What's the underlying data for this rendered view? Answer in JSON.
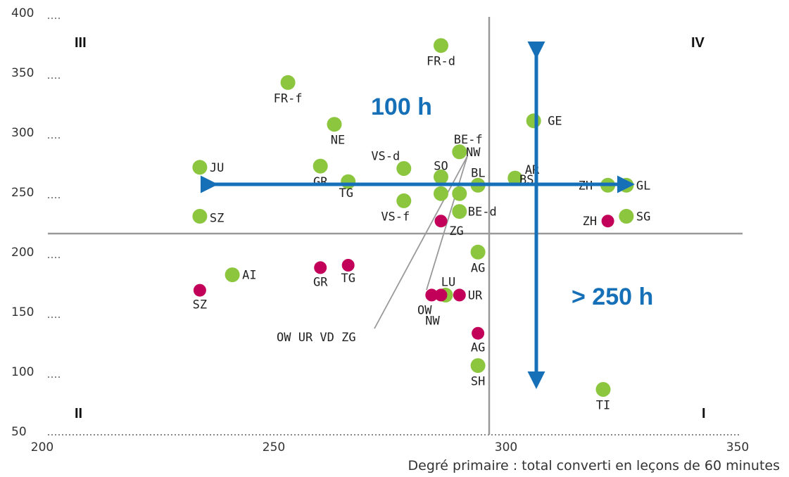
{
  "chart_data": {
    "type": "scatter",
    "xlabel": "Degré primaire : total converti en leçons de 60 minutes",
    "ylabel": "",
    "xlim": [
      200,
      350
    ],
    "ylim": [
      50,
      400
    ],
    "x_ticks": [
      "200",
      "250",
      "300",
      "350"
    ],
    "y_ticks": [
      "400",
      "350",
      "300",
      "250",
      "200",
      "150",
      "100",
      "50"
    ],
    "reference_x": 297,
    "reference_y": 214,
    "quadrant_labels": [
      "I",
      "II",
      "III",
      "IV"
    ],
    "callouts": [
      "100 h",
      "> 250 h"
    ],
    "colors": {
      "green": "#8cc63f",
      "magenta": "#c2005a",
      "arrow": "#1670b8",
      "axis": "#999999"
    },
    "series": [
      {
        "color": "green",
        "points": [
          {
            "label": "FR-d",
            "x": 286,
            "y": 376
          },
          {
            "label": "FR-f",
            "x": 253,
            "y": 345
          },
          {
            "label": "NE",
            "x": 263,
            "y": 310
          },
          {
            "label": "GE",
            "x": 306,
            "y": 313
          },
          {
            "label": "BE-f",
            "x": 290,
            "y": 287
          },
          {
            "label": "JU",
            "x": 234,
            "y": 274
          },
          {
            "label": "GR",
            "x": 260,
            "y": 275
          },
          {
            "label": "VS-d",
            "x": 278,
            "y": 273
          },
          {
            "label": "SO",
            "x": 286,
            "y": 266
          },
          {
            "label": "TG",
            "x": 266,
            "y": 262
          },
          {
            "label": "BL",
            "x": 294,
            "y": 259
          },
          {
            "label": "AR",
            "x": 302,
            "y": 265
          },
          {
            "label": "ZH",
            "x": 322,
            "y": 259
          },
          {
            "label": "GL",
            "x": 326,
            "y": 259
          },
          {
            "label": "",
            "x": 286,
            "y": 252
          },
          {
            "label": "",
            "x": 290,
            "y": 252
          },
          {
            "label": "VS-f",
            "x": 278,
            "y": 246
          },
          {
            "label": "BE-d",
            "x": 290,
            "y": 237
          },
          {
            "label": "SZ",
            "x": 234,
            "y": 233
          },
          {
            "label": "SG",
            "x": 326,
            "y": 233
          },
          {
            "label": "AG",
            "x": 294,
            "y": 203
          },
          {
            "label": "AI",
            "x": 241,
            "y": 184
          },
          {
            "label": "LU",
            "x": 287,
            "y": 167
          },
          {
            "label": "SH",
            "x": 294,
            "y": 108
          },
          {
            "label": "TI",
            "x": 321,
            "y": 88
          }
        ]
      },
      {
        "color": "magenta",
        "points": [
          {
            "label": "ZG",
            "x": 286,
            "y": 229
          },
          {
            "label": "ZH",
            "x": 322,
            "y": 229
          },
          {
            "label": "GR",
            "x": 260,
            "y": 190
          },
          {
            "label": "TG",
            "x": 266,
            "y": 192
          },
          {
            "label": "SZ",
            "x": 234,
            "y": 171
          },
          {
            "label": "OW",
            "x": 284,
            "y": 167
          },
          {
            "label": "NW",
            "x": 286,
            "y": 167
          },
          {
            "label": "UR",
            "x": 290,
            "y": 167
          },
          {
            "label": "AG",
            "x": 294,
            "y": 135
          }
        ]
      }
    ],
    "extra_labels": [
      "BS",
      "NW",
      "OW UR VD ZG"
    ]
  }
}
